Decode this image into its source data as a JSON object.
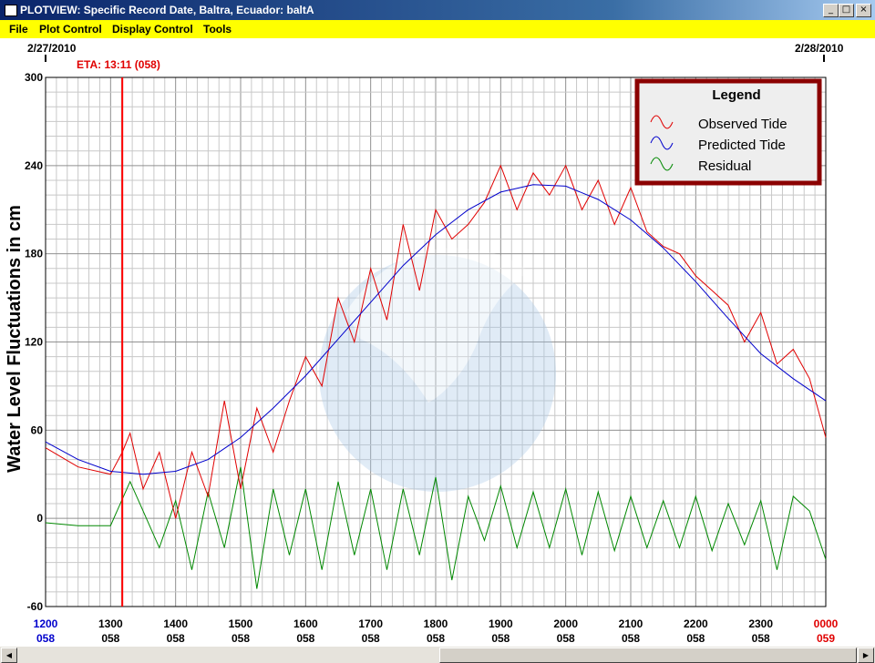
{
  "window": {
    "title": "PLOTVIEW: Specific Record Date, Baltra, Ecuador: baltA",
    "minimize_glyph": "_",
    "maximize_glyph": "□",
    "close_glyph": "×"
  },
  "menu": [
    "File",
    "Plot Control",
    "Display Control",
    "Tools"
  ],
  "header": {
    "start_date": "2/27/2010",
    "end_date": "2/28/2010",
    "eta_label": "ETA: 13:11 (058)"
  },
  "legend": {
    "title": "Legend",
    "items": [
      "Observed Tide",
      "Predicted Tide",
      "Residual"
    ]
  },
  "colors": {
    "observed": "#e00000",
    "predicted": "#0000cc",
    "residual": "#008800",
    "eta_line": "#ff0000",
    "legend_border": "#8b0000"
  },
  "chart_data": {
    "type": "line",
    "ylabel": "Water Level Fluctuations in cm",
    "ylim": [
      -60,
      300
    ],
    "yticks": [
      -60,
      0,
      60,
      120,
      180,
      240,
      300
    ],
    "xlim_hours": [
      12,
      24
    ],
    "xticks": [
      {
        "time": "1200",
        "day": "058"
      },
      {
        "time": "1300",
        "day": "058"
      },
      {
        "time": "1400",
        "day": "058"
      },
      {
        "time": "1500",
        "day": "058"
      },
      {
        "time": "1600",
        "day": "058"
      },
      {
        "time": "1700",
        "day": "058"
      },
      {
        "time": "1800",
        "day": "058"
      },
      {
        "time": "1900",
        "day": "058"
      },
      {
        "time": "2000",
        "day": "058"
      },
      {
        "time": "2100",
        "day": "058"
      },
      {
        "time": "2200",
        "day": "058"
      },
      {
        "time": "2300",
        "day": "058"
      },
      {
        "time": "0000",
        "day": "059"
      }
    ],
    "eta_hour": 13.18,
    "series": [
      {
        "name": "Predicted Tide",
        "x": [
          12.0,
          12.5,
          13.0,
          13.5,
          14.0,
          14.5,
          15.0,
          15.5,
          16.0,
          16.5,
          17.0,
          17.5,
          18.0,
          18.5,
          19.0,
          19.5,
          20.0,
          20.5,
          21.0,
          21.5,
          22.0,
          22.5,
          23.0,
          23.5,
          24.0
        ],
        "y": [
          52,
          40,
          32,
          30,
          32,
          40,
          55,
          75,
          97,
          122,
          147,
          172,
          193,
          210,
          222,
          227,
          226,
          217,
          203,
          184,
          161,
          136,
          112,
          95,
          80
        ]
      },
      {
        "name": "Observed Tide",
        "x": [
          12.0,
          12.5,
          13.0,
          13.18,
          13.3,
          13.5,
          13.75,
          14.0,
          14.25,
          14.5,
          14.75,
          15.0,
          15.25,
          15.5,
          15.75,
          16.0,
          16.25,
          16.5,
          16.75,
          17.0,
          17.25,
          17.5,
          17.75,
          18.0,
          18.25,
          18.5,
          18.75,
          19.0,
          19.25,
          19.5,
          19.75,
          20.0,
          20.25,
          20.5,
          20.75,
          21.0,
          21.25,
          21.5,
          21.75,
          22.0,
          22.25,
          22.5,
          22.75,
          23.0,
          23.25,
          23.5,
          23.75,
          24.0
        ],
        "y": [
          48,
          35,
          30,
          45,
          58,
          20,
          45,
          0,
          45,
          15,
          80,
          20,
          75,
          45,
          80,
          110,
          90,
          150,
          120,
          170,
          135,
          200,
          155,
          210,
          190,
          200,
          215,
          240,
          210,
          235,
          220,
          240,
          210,
          230,
          200,
          225,
          195,
          185,
          180,
          165,
          155,
          145,
          120,
          140,
          105,
          115,
          95,
          55
        ]
      },
      {
        "name": "Residual",
        "x": [
          12.0,
          12.5,
          13.0,
          13.3,
          13.5,
          13.75,
          14.0,
          14.25,
          14.5,
          14.75,
          15.0,
          15.25,
          15.5,
          15.75,
          16.0,
          16.25,
          16.5,
          16.75,
          17.0,
          17.25,
          17.5,
          17.75,
          18.0,
          18.25,
          18.5,
          18.75,
          19.0,
          19.25,
          19.5,
          19.75,
          20.0,
          20.25,
          20.5,
          20.75,
          21.0,
          21.25,
          21.5,
          21.75,
          22.0,
          22.25,
          22.5,
          22.75,
          23.0,
          23.25,
          23.5,
          23.75,
          24.0
        ],
        "y": [
          -3,
          -5,
          -5,
          25,
          5,
          -20,
          12,
          -35,
          18,
          -20,
          35,
          -48,
          20,
          -25,
          20,
          -35,
          25,
          -25,
          20,
          -35,
          20,
          -25,
          28,
          -42,
          15,
          -15,
          22,
          -20,
          18,
          -20,
          20,
          -25,
          18,
          -22,
          15,
          -20,
          12,
          -20,
          15,
          -22,
          10,
          -18,
          12,
          -35,
          15,
          5,
          -28
        ]
      }
    ]
  }
}
